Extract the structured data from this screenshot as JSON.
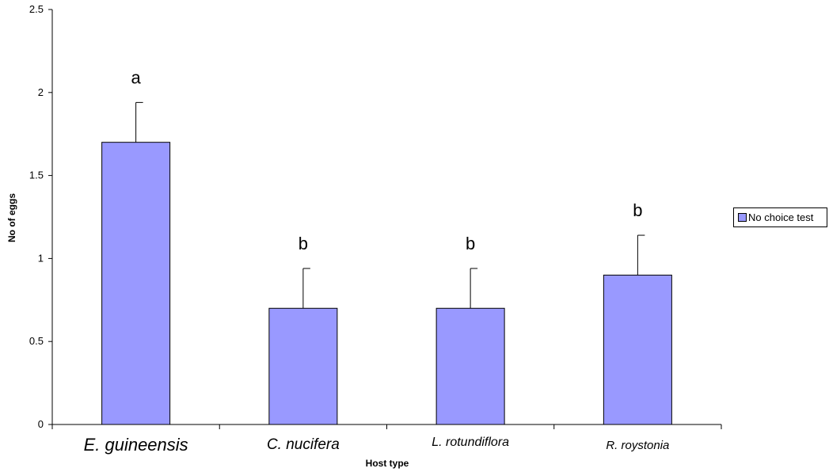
{
  "chart_data": {
    "type": "bar",
    "categories": [
      "E. guineensis",
      "C. nucifera",
      "L. rotundiflora",
      "R. roystonia"
    ],
    "series": [
      {
        "name": "No choice test",
        "values": [
          1.7,
          0.7,
          0.7,
          0.9
        ],
        "error": [
          0.24,
          0.24,
          0.24,
          0.24
        ],
        "significance": [
          "a",
          "b",
          "b",
          "b"
        ]
      }
    ],
    "xlabel": "Host type",
    "ylabel": "No of eggs",
    "ylim": [
      0,
      2.5
    ],
    "yticks": [
      "0",
      "0.5",
      "1",
      "1.5",
      "2",
      "2.5"
    ],
    "grid": false,
    "legend": "right",
    "colors": {
      "bar": "#9999ff",
      "outline": "#000000"
    }
  }
}
